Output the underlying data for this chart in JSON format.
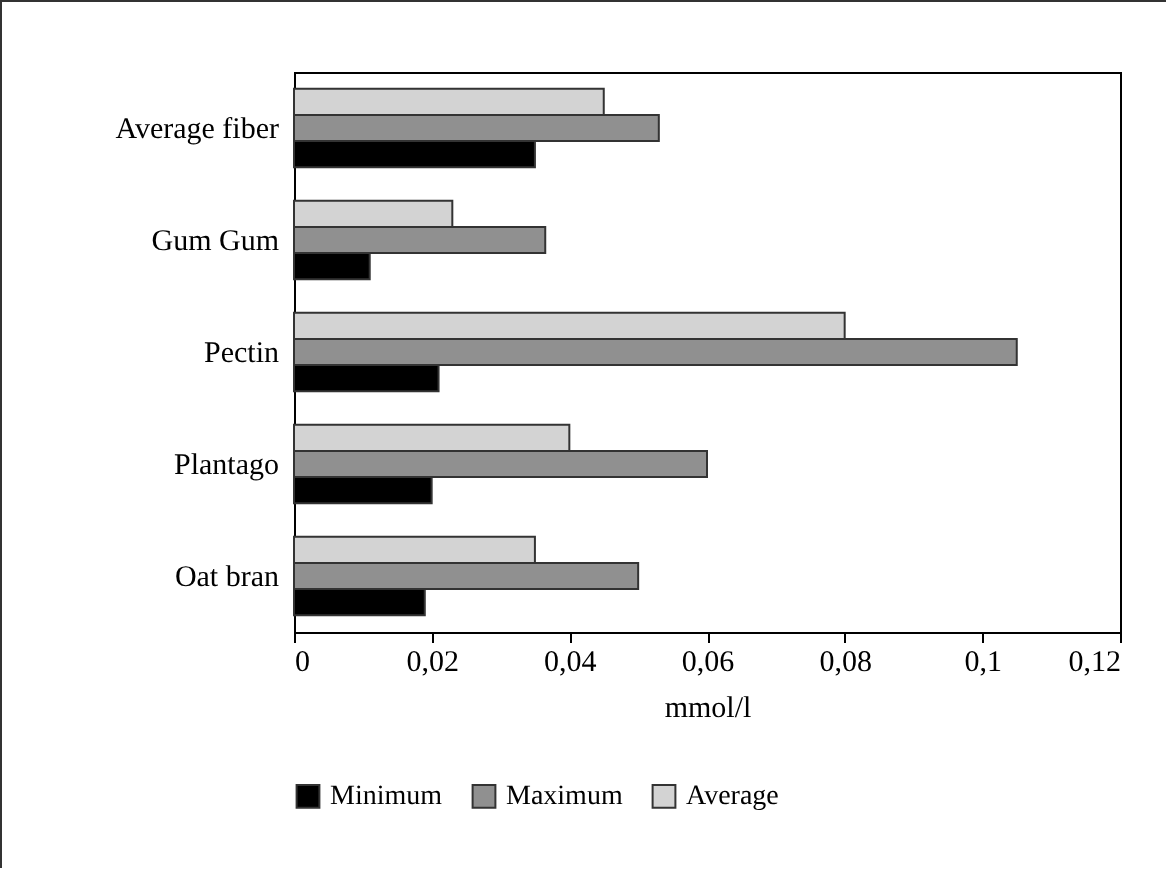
{
  "chart_data": {
    "type": "bar",
    "orientation": "horizontal",
    "xlabel": "mmol/l",
    "categories": [
      "Average fiber",
      "Gum Gum",
      "Pectin",
      "Plantago",
      "Oat bran"
    ],
    "series": [
      {
        "name": "Minimum",
        "color": "#000000",
        "values": [
          0.035,
          0.011,
          0.021,
          0.02,
          0.019
        ]
      },
      {
        "name": "Maximum",
        "color": "#909090",
        "values": [
          0.053,
          0.0365,
          0.105,
          0.06,
          0.05
        ]
      },
      {
        "name": "Average",
        "color": "#d3d3d3",
        "values": [
          0.045,
          0.023,
          0.08,
          0.04,
          0.035
        ]
      }
    ],
    "xlim": [
      0,
      0.12
    ],
    "xticks": [
      {
        "value": 0,
        "label": "0"
      },
      {
        "value": 0.02,
        "label": "0,02"
      },
      {
        "value": 0.04,
        "label": "0,04"
      },
      {
        "value": 0.06,
        "label": "0,06"
      },
      {
        "value": 0.08,
        "label": "0,08"
      },
      {
        "value": 0.1,
        "label": "0,1"
      },
      {
        "value": 0.12,
        "label": "0,12"
      }
    ],
    "grid": false,
    "legend": "bottom"
  }
}
